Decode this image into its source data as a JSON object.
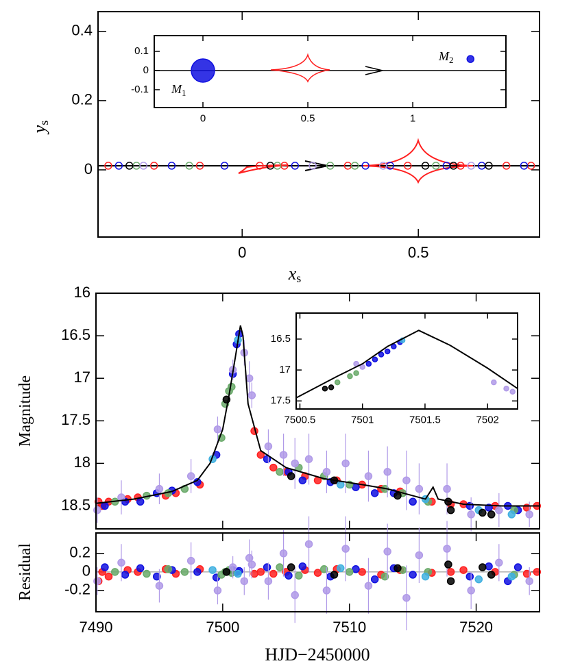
{
  "chart_data": [
    {
      "type": "scatter",
      "filled": false,
      "xlabel": "x",
      "xlabel_sub": "s",
      "ylabel": "y",
      "ylabel_sub": "s",
      "xlim": [
        -0.409,
        0.844
      ],
      "ylim": [
        -0.194,
        0.457
      ],
      "xticks": [
        0,
        0.5
      ],
      "yticks": [
        0,
        0.2,
        0.4
      ],
      "series": [
        {
          "color": "#ff2020",
          "x": [
            -0.38,
            -0.25,
            -0.12,
            0.05,
            0.12,
            0.3,
            0.47,
            0.62,
            0.75,
            0.82
          ],
          "values": [
            0.012,
            0.012,
            0.012,
            0.012,
            0.012,
            0.012,
            0.012,
            0.012,
            0.012,
            0.012
          ]
        },
        {
          "color": "#1010e0",
          "x": [
            -0.35,
            -0.2,
            -0.05,
            0.15,
            0.35,
            0.42,
            0.58,
            0.68,
            0.8
          ],
          "values": [
            0.012,
            0.012,
            0.012,
            0.012,
            0.012,
            0.012,
            0.012,
            0.012,
            0.012
          ]
        },
        {
          "color": "#6aaa6a",
          "x": [
            -0.3,
            -0.15,
            0.1,
            0.25,
            0.32,
            0.55
          ],
          "values": [
            0.012,
            0.012,
            0.012,
            0.012,
            0.012,
            0.012
          ]
        },
        {
          "color": "#000000",
          "x": [
            -0.32,
            0.08,
            0.52,
            0.6,
            0.7
          ],
          "values": [
            0.012,
            0.012,
            0.012,
            0.012,
            0.012
          ]
        },
        {
          "color": "#b09ae8",
          "x": [
            -0.28,
            0.2,
            0.4,
            0.65
          ],
          "values": [
            0.012,
            0.012,
            0.012,
            0.012
          ]
        }
      ]
    },
    {
      "type": "lens",
      "filled": true,
      "xlim": [
        -0.232,
        1.444
      ],
      "ylim": [
        -0.193,
        0.182
      ],
      "xticks": [
        0,
        0.5,
        1
      ],
      "yticks": [
        -0.1,
        0,
        0.1
      ],
      "annotations": [
        {
          "text": "M",
          "sub": "1"
        },
        {
          "text": "M",
          "sub": "2"
        }
      ],
      "series": [
        {
          "color": "#1010e0",
          "x": [
            0,
            1.275
          ],
          "values": [
            0,
            0.06
          ]
        }
      ]
    },
    {
      "type": "lightcurve",
      "filled": true,
      "xticklabels": false,
      "ylabel": "Magnitude",
      "xlim": [
        7490,
        7525
      ],
      "ylim": [
        18.77,
        16
      ],
      "xticks": [
        7490,
        7500,
        7510,
        7520
      ],
      "yticks": [
        16,
        16.5,
        17,
        17.5,
        18,
        18.5
      ],
      "model": {
        "x": [
          7490,
          7493,
          7496,
          7498,
          7499,
          7500,
          7500.5,
          7501,
          7501.4,
          7501.6,
          7502,
          7503,
          7505,
          7508,
          7511,
          7513,
          7515,
          7516,
          7516.6,
          7517,
          7519,
          7522,
          7525
        ],
        "values": [
          18.47,
          18.42,
          18.33,
          18.2,
          18.0,
          17.6,
          17.2,
          16.75,
          16.38,
          16.5,
          17.3,
          17.85,
          18.05,
          18.18,
          18.25,
          18.3,
          18.38,
          18.42,
          18.28,
          18.42,
          18.48,
          18.5,
          18.5
        ]
      },
      "series": [
        {
          "color": "#ff2020",
          "x": [
            7490.2,
            7490.5,
            7491,
            7492.5,
            7493.3,
            7495.5,
            7496.3,
            7498.2,
            7502.5,
            7503,
            7504,
            7505,
            7506.5,
            7507.5,
            7509,
            7511,
            7512.5,
            7514,
            7516.5,
            7518,
            7519,
            7521.5,
            7524,
            7524.8
          ],
          "values": [
            18.45,
            18.5,
            18.45,
            18.42,
            18.4,
            18.38,
            18.35,
            18.25,
            17.62,
            17.9,
            18.05,
            18.1,
            18.15,
            18.2,
            18.2,
            18.25,
            18.3,
            18.33,
            18.45,
            18.48,
            18.48,
            18.5,
            18.52,
            18.5
          ]
        },
        {
          "color": "#1010e0",
          "x": [
            7490.7,
            7492.3,
            7493.5,
            7494.8,
            7496,
            7498,
            7499.5,
            7500.8,
            7501.1,
            7501.3,
            7503.5,
            7505.2,
            7506.3,
            7508.5,
            7510.5,
            7512,
            7513.5,
            7515,
            7519.5,
            7521,
            7522.5,
            7523.3
          ],
          "values": [
            18.5,
            18.45,
            18.45,
            18.35,
            18.32,
            18.22,
            17.9,
            16.95,
            16.6,
            16.48,
            17.95,
            18.1,
            18.2,
            18.22,
            18.28,
            18.35,
            18.35,
            18.45,
            18.5,
            18.52,
            18.5,
            18.55
          ]
        },
        {
          "color": "#6aaa6a",
          "x": [
            7491.5,
            7494,
            7495.7,
            7497,
            7499.9,
            7500.2,
            7500.5,
            7500.7,
            7504.5,
            7506,
            7508,
            7510,
            7512.8,
            7514.2,
            7516.2,
            7523
          ],
          "values": [
            18.45,
            18.38,
            18.35,
            18.3,
            17.7,
            17.3,
            17.15,
            17.1,
            18.1,
            18.05,
            18.15,
            18.25,
            18.3,
            18.35,
            18.45,
            18.55
          ]
        },
        {
          "color": "#b09ae8",
          "x": [
            7490.1,
            7492,
            7495,
            7497.5,
            7499.6,
            7500.8,
            7501.7,
            7502.1,
            7502.3,
            7503.6,
            7504.8,
            7505.7,
            7506.8,
            7508.2,
            7509.7,
            7511.5,
            7513,
            7514.5,
            7515.5,
            7517.7,
            7519.6,
            7521.8,
            7524.2
          ],
          "values": [
            18.55,
            18.4,
            18.3,
            18.15,
            17.6,
            16.9,
            16.7,
            17.0,
            17.2,
            17.8,
            17.9,
            18.0,
            17.95,
            18.1,
            18.0,
            18.15,
            18.1,
            18.2,
            18.3,
            18.3,
            18.6,
            18.55,
            18.6
          ],
          "errors": [
            0.15,
            0.2,
            0.18,
            0.2,
            0.15,
            0.12,
            0.15,
            0.2,
            0.15,
            0.2,
            0.25,
            0.3,
            0.3,
            0.25,
            0.35,
            0.3,
            0.3,
            0.35,
            0.3,
            0.3,
            0.2,
            0.2,
            0.15
          ]
        },
        {
          "color": "#40b0e0",
          "x": [
            7499.2,
            7501.2,
            7509.3,
            7516,
            7520.2,
            7522.8
          ],
          "values": [
            17.95,
            16.55,
            18.25,
            18.42,
            18.55,
            18.6
          ]
        },
        {
          "color": "#000000",
          "x": [
            7500.3,
            7505.4,
            7508.8,
            7513.8,
            7517.8,
            7518,
            7520.5,
            7521.2
          ],
          "values": [
            17.25,
            18.15,
            18.2,
            18.38,
            18.45,
            18.55,
            18.58,
            18.6
          ]
        }
      ]
    },
    {
      "type": "lightcurve",
      "filled": true,
      "xlim": [
        7500.47,
        7502.24
      ],
      "ylim": [
        17.63,
        16.08
      ],
      "xticks": [
        7500.5,
        7501,
        7501.5,
        7502
      ],
      "yticks": [
        16.5,
        17,
        17.5
      ],
      "model": {
        "x": [
          7500.47,
          7500.8,
          7501.0,
          7501.2,
          7501.45,
          7501.7,
          7502.0,
          7502.24
        ],
        "values": [
          17.45,
          17.1,
          16.9,
          16.62,
          16.36,
          16.6,
          16.97,
          17.3
        ]
      },
      "series": [
        {
          "color": "#000000",
          "x": [
            7500.7,
            7500.75
          ],
          "values": [
            17.3,
            17.28
          ]
        },
        {
          "color": "#6aaa6a",
          "x": [
            7500.8,
            7500.9,
            7500.95
          ],
          "values": [
            17.2,
            17.1,
            17.05
          ]
        },
        {
          "color": "#1010e0",
          "x": [
            7501.05,
            7501.1,
            7501.15,
            7501.2,
            7501.25,
            7501.3
          ],
          "values": [
            16.9,
            16.83,
            16.75,
            16.7,
            16.62,
            16.55
          ]
        },
        {
          "color": "#b09ae8",
          "x": [
            7500.95,
            7501.0,
            7502.05,
            7502.15,
            7502.2
          ],
          "values": [
            16.9,
            16.95,
            17.2,
            17.3,
            17.35
          ]
        },
        {
          "color": "#40b0e0",
          "x": [
            7501.32
          ],
          "values": [
            16.52
          ]
        }
      ]
    },
    {
      "type": "residual",
      "filled": true,
      "ylabel": "Residual",
      "xlabel": "HJD−2450000",
      "xlim": [
        7490,
        7525
      ],
      "ylim": [
        -0.43,
        0.42
      ],
      "xticks": [
        7490,
        7500,
        7510,
        7520
      ],
      "yticks": [
        -0.2,
        0,
        0.2
      ],
      "series": [
        {
          "color": "#ff2020",
          "x": [
            7490.2,
            7490.5,
            7491,
            7492.5,
            7493.3,
            7495.5,
            7496.3,
            7498.2,
            7502.5,
            7503,
            7504,
            7505,
            7506.5,
            7507.5,
            7509,
            7511,
            7512.5,
            7514,
            7516.5,
            7518,
            7519,
            7521.5,
            7524,
            7524.8
          ],
          "values": [
            -0.1,
            0.0,
            -0.05,
            0.02,
            0.0,
            0.03,
            -0.02,
            0.03,
            -0.02,
            0.0,
            -0.02,
            0.0,
            0.02,
            -0.01,
            0.03,
            0.0,
            -0.03,
            0.02,
            -0.01,
            0.0,
            0.02,
            0.0,
            -0.02,
            0.0
          ]
        },
        {
          "color": "#1010e0",
          "x": [
            7490.7,
            7492.3,
            7493.5,
            7494.8,
            7496,
            7498,
            7499.5,
            7500.8,
            7501.1,
            7501.3,
            7503.5,
            7505.2,
            7506.3,
            7508.5,
            7510.5,
            7512,
            7513.5,
            7515,
            7519.5,
            7521,
            7522.5,
            7523.3
          ],
          "values": [
            0.05,
            -0.03,
            0.04,
            -0.05,
            0.02,
            0.0,
            -0.06,
            0.02,
            0.0,
            0.01,
            0.05,
            -0.04,
            0.06,
            -0.05,
            0.03,
            -0.08,
            0.04,
            -0.03,
            -0.05,
            0.06,
            -0.1,
            0.05
          ]
        },
        {
          "color": "#6aaa6a",
          "x": [
            7491.5,
            7494,
            7495.7,
            7497,
            7499.9,
            7500.2,
            7500.5,
            7500.7,
            7504.5,
            7506,
            7508,
            7510,
            7512.8,
            7514.2,
            7516.2,
            7523
          ],
          "values": [
            0.0,
            -0.02,
            0.03,
            0.0,
            -0.03,
            0.0,
            0.02,
            -0.01,
            0.05,
            -0.04,
            0.03,
            0.0,
            -0.05,
            0.02,
            0.0,
            -0.03
          ]
        },
        {
          "color": "#b09ae8",
          "x": [
            7490.1,
            7492,
            7495,
            7497.5,
            7499.6,
            7500.8,
            7501.7,
            7502.1,
            7502.3,
            7503.6,
            7504.8,
            7505.7,
            7506.8,
            7508.2,
            7509.7,
            7511.5,
            7513,
            7514.5,
            7515.5,
            7517.7,
            7519.6,
            7521.8,
            7524.2
          ],
          "values": [
            -0.1,
            0.1,
            -0.15,
            0.12,
            -0.2,
            0.05,
            -0.1,
            0.15,
            0.08,
            -0.1,
            0.2,
            -0.25,
            0.3,
            -0.2,
            0.25,
            -0.15,
            0.22,
            -0.28,
            0.18,
            0.25,
            -0.2,
            0.1,
            -0.1
          ],
          "errors": [
            0.15,
            0.2,
            0.18,
            0.2,
            0.15,
            0.12,
            0.15,
            0.2,
            0.15,
            0.2,
            0.25,
            0.3,
            0.3,
            0.25,
            0.35,
            0.3,
            0.3,
            0.35,
            0.3,
            0.3,
            0.2,
            0.2,
            0.15
          ]
        },
        {
          "color": "#40b0e0",
          "x": [
            7499.2,
            7501.2,
            7509.3,
            7516,
            7520.2,
            7522.8
          ],
          "values": [
            0.02,
            -0.02,
            0.04,
            -0.05,
            -0.08,
            -0.05
          ]
        },
        {
          "color": "#000000",
          "x": [
            7500.3,
            7505.4,
            7508.8,
            7513.8,
            7517.8,
            7518,
            7520.5,
            7521.2
          ],
          "values": [
            0.0,
            0.05,
            -0.03,
            0.04,
            0.08,
            -0.1,
            0.05,
            -0.03
          ]
        }
      ]
    }
  ]
}
